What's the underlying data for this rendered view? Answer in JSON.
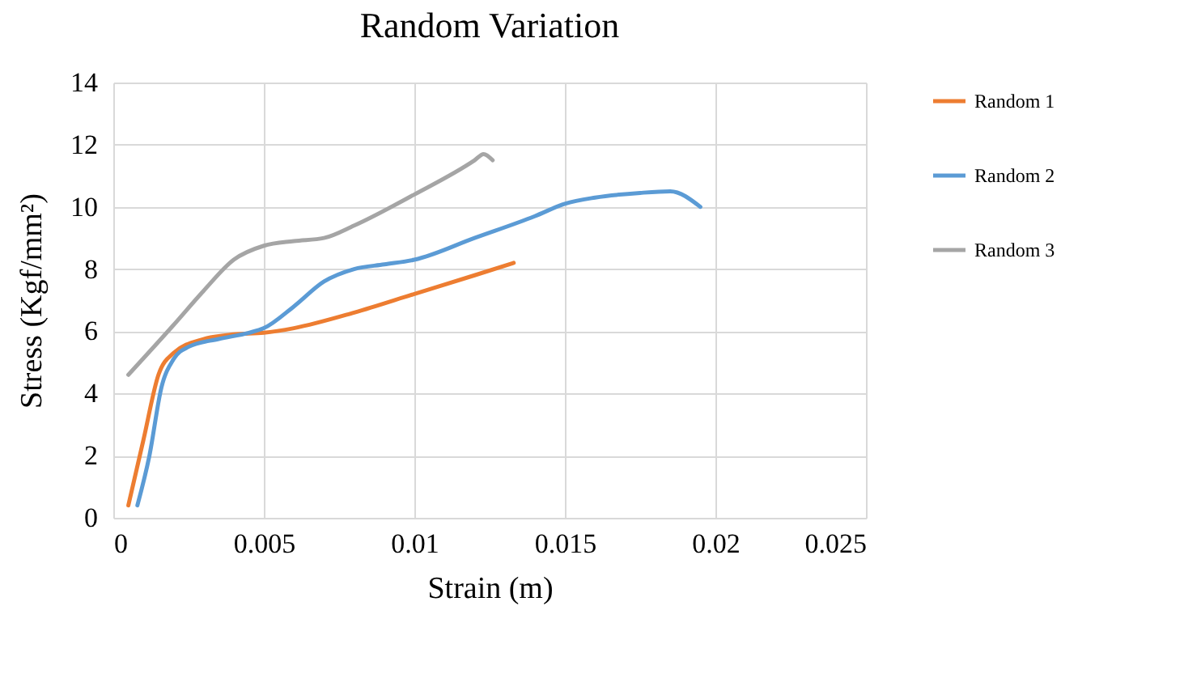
{
  "chart_data": {
    "type": "line",
    "title": "Random Variation",
    "xlabel": "Strain (m)",
    "ylabel": "Stress (Kgf/mm²)",
    "xlim": [
      0,
      0.025
    ],
    "xticks": [
      0,
      0.005,
      0.01,
      0.015,
      0.02,
      0.025
    ],
    "ylim": [
      0,
      14
    ],
    "yticks": [
      0,
      2,
      4,
      6,
      8,
      10,
      12,
      14
    ],
    "grid": true,
    "legend": "right",
    "marker": "none",
    "line_style": "solid",
    "series": [
      {
        "name": "Random 1",
        "color": "#ed7d31",
        "x": [
          0.0005,
          0.001,
          0.0015,
          0.002,
          0.003,
          0.004,
          0.005,
          0.006,
          0.008,
          0.01,
          0.012,
          0.0133
        ],
        "values": [
          0.4,
          2.5,
          4.6,
          5.3,
          5.75,
          5.9,
          5.95,
          6.1,
          6.6,
          7.2,
          7.8,
          8.2
        ]
      },
      {
        "name": "Random 2",
        "color": "#5b9bd5",
        "x": [
          0.0008,
          0.0012,
          0.0016,
          0.002,
          0.0025,
          0.0035,
          0.0045,
          0.005,
          0.006,
          0.007,
          0.008,
          0.009,
          0.01,
          0.012,
          0.014,
          0.015,
          0.016,
          0.0175,
          0.0185,
          0.0195
        ],
        "values": [
          0.4,
          2,
          4.2,
          5.1,
          5.5,
          5.75,
          5.95,
          6.1,
          6.8,
          7.6,
          8,
          8.15,
          8.3,
          9,
          9.7,
          10.1,
          10.3,
          10.45,
          10.5,
          10
        ]
      },
      {
        "name": "Random 3",
        "color": "#a5a5a5",
        "x": [
          0.0005,
          0.002,
          0.003,
          0.004,
          0.005,
          0.006,
          0.007,
          0.008,
          0.01,
          0.012,
          0.0123,
          0.0126
        ],
        "values": [
          4.6,
          6.2,
          7.3,
          8.3,
          8.75,
          8.9,
          9,
          9.4,
          10.4,
          11.5,
          11.7,
          11.5
        ]
      }
    ]
  }
}
